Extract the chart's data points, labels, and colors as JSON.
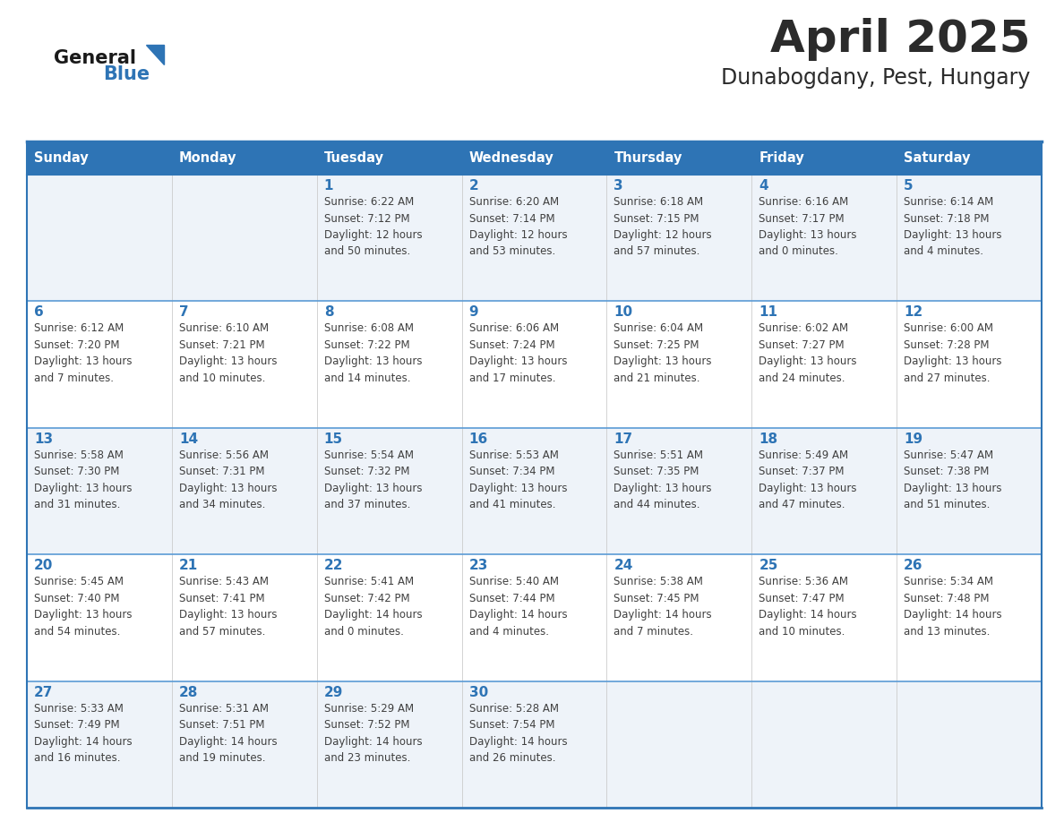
{
  "title": "April 2025",
  "subtitle": "Dunabogdany, Pest, Hungary",
  "header_bg": "#2E74B5",
  "header_text_color": "#FFFFFF",
  "day_number_color": "#2E74B5",
  "body_text_color": "#404040",
  "border_color": "#2E74B5",
  "row_border_color": "#5B9BD5",
  "cell_bg_even": "#FFFFFF",
  "cell_bg_odd": "#EEF3F9",
  "days_of_week": [
    "Sunday",
    "Monday",
    "Tuesday",
    "Wednesday",
    "Thursday",
    "Friday",
    "Saturday"
  ],
  "calendar_data": [
    [
      {
        "day": null,
        "info": null
      },
      {
        "day": null,
        "info": null
      },
      {
        "day": "1",
        "info": "Sunrise: 6:22 AM\nSunset: 7:12 PM\nDaylight: 12 hours\nand 50 minutes."
      },
      {
        "day": "2",
        "info": "Sunrise: 6:20 AM\nSunset: 7:14 PM\nDaylight: 12 hours\nand 53 minutes."
      },
      {
        "day": "3",
        "info": "Sunrise: 6:18 AM\nSunset: 7:15 PM\nDaylight: 12 hours\nand 57 minutes."
      },
      {
        "day": "4",
        "info": "Sunrise: 6:16 AM\nSunset: 7:17 PM\nDaylight: 13 hours\nand 0 minutes."
      },
      {
        "day": "5",
        "info": "Sunrise: 6:14 AM\nSunset: 7:18 PM\nDaylight: 13 hours\nand 4 minutes."
      }
    ],
    [
      {
        "day": "6",
        "info": "Sunrise: 6:12 AM\nSunset: 7:20 PM\nDaylight: 13 hours\nand 7 minutes."
      },
      {
        "day": "7",
        "info": "Sunrise: 6:10 AM\nSunset: 7:21 PM\nDaylight: 13 hours\nand 10 minutes."
      },
      {
        "day": "8",
        "info": "Sunrise: 6:08 AM\nSunset: 7:22 PM\nDaylight: 13 hours\nand 14 minutes."
      },
      {
        "day": "9",
        "info": "Sunrise: 6:06 AM\nSunset: 7:24 PM\nDaylight: 13 hours\nand 17 minutes."
      },
      {
        "day": "10",
        "info": "Sunrise: 6:04 AM\nSunset: 7:25 PM\nDaylight: 13 hours\nand 21 minutes."
      },
      {
        "day": "11",
        "info": "Sunrise: 6:02 AM\nSunset: 7:27 PM\nDaylight: 13 hours\nand 24 minutes."
      },
      {
        "day": "12",
        "info": "Sunrise: 6:00 AM\nSunset: 7:28 PM\nDaylight: 13 hours\nand 27 minutes."
      }
    ],
    [
      {
        "day": "13",
        "info": "Sunrise: 5:58 AM\nSunset: 7:30 PM\nDaylight: 13 hours\nand 31 minutes."
      },
      {
        "day": "14",
        "info": "Sunrise: 5:56 AM\nSunset: 7:31 PM\nDaylight: 13 hours\nand 34 minutes."
      },
      {
        "day": "15",
        "info": "Sunrise: 5:54 AM\nSunset: 7:32 PM\nDaylight: 13 hours\nand 37 minutes."
      },
      {
        "day": "16",
        "info": "Sunrise: 5:53 AM\nSunset: 7:34 PM\nDaylight: 13 hours\nand 41 minutes."
      },
      {
        "day": "17",
        "info": "Sunrise: 5:51 AM\nSunset: 7:35 PM\nDaylight: 13 hours\nand 44 minutes."
      },
      {
        "day": "18",
        "info": "Sunrise: 5:49 AM\nSunset: 7:37 PM\nDaylight: 13 hours\nand 47 minutes."
      },
      {
        "day": "19",
        "info": "Sunrise: 5:47 AM\nSunset: 7:38 PM\nDaylight: 13 hours\nand 51 minutes."
      }
    ],
    [
      {
        "day": "20",
        "info": "Sunrise: 5:45 AM\nSunset: 7:40 PM\nDaylight: 13 hours\nand 54 minutes."
      },
      {
        "day": "21",
        "info": "Sunrise: 5:43 AM\nSunset: 7:41 PM\nDaylight: 13 hours\nand 57 minutes."
      },
      {
        "day": "22",
        "info": "Sunrise: 5:41 AM\nSunset: 7:42 PM\nDaylight: 14 hours\nand 0 minutes."
      },
      {
        "day": "23",
        "info": "Sunrise: 5:40 AM\nSunset: 7:44 PM\nDaylight: 14 hours\nand 4 minutes."
      },
      {
        "day": "24",
        "info": "Sunrise: 5:38 AM\nSunset: 7:45 PM\nDaylight: 14 hours\nand 7 minutes."
      },
      {
        "day": "25",
        "info": "Sunrise: 5:36 AM\nSunset: 7:47 PM\nDaylight: 14 hours\nand 10 minutes."
      },
      {
        "day": "26",
        "info": "Sunrise: 5:34 AM\nSunset: 7:48 PM\nDaylight: 14 hours\nand 13 minutes."
      }
    ],
    [
      {
        "day": "27",
        "info": "Sunrise: 5:33 AM\nSunset: 7:49 PM\nDaylight: 14 hours\nand 16 minutes."
      },
      {
        "day": "28",
        "info": "Sunrise: 5:31 AM\nSunset: 7:51 PM\nDaylight: 14 hours\nand 19 minutes."
      },
      {
        "day": "29",
        "info": "Sunrise: 5:29 AM\nSunset: 7:52 PM\nDaylight: 14 hours\nand 23 minutes."
      },
      {
        "day": "30",
        "info": "Sunrise: 5:28 AM\nSunset: 7:54 PM\nDaylight: 14 hours\nand 26 minutes."
      },
      {
        "day": null,
        "info": null
      },
      {
        "day": null,
        "info": null
      },
      {
        "day": null,
        "info": null
      }
    ]
  ],
  "logo_general_color": "#1a1a1a",
  "logo_blue_color": "#2E74B5",
  "logo_triangle_color": "#2E74B5"
}
